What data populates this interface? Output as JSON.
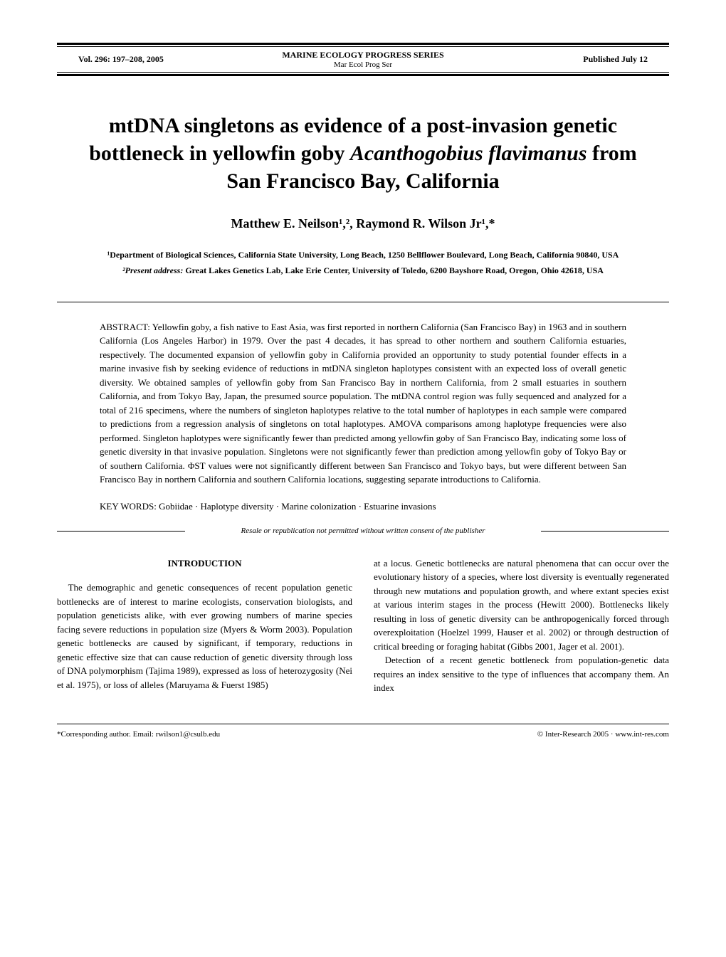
{
  "header": {
    "volume": "Vol. 296: 197–208, 2005",
    "journal_name": "MARINE ECOLOGY PROGRESS SERIES",
    "journal_abbrev": "Mar Ecol Prog Ser",
    "published": "Published July 12"
  },
  "title": {
    "line1": "mtDNA singletons as evidence of a post-invasion genetic bottleneck in yellowfin goby ",
    "italic": "Acanthogobius flavimanus",
    "line2": " from San Francisco Bay, California"
  },
  "authors": "Matthew E. Neilson¹,², Raymond R. Wilson Jr¹,*",
  "affiliations": {
    "aff1": "¹Department of Biological Sciences, California State University, Long Beach, 1250 Bellflower Boulevard, Long Beach, California 90840, USA",
    "aff2_label": "²Present address:",
    "aff2_text": " Great Lakes Genetics Lab, Lake Erie Center, University of Toledo, 6200 Bayshore Road, Oregon, Ohio 42618, USA"
  },
  "abstract": {
    "label": "ABSTRACT: ",
    "text": "Yellowfin goby, a fish native to East Asia, was first reported in northern California (San Francisco Bay) in 1963 and in southern California (Los Angeles Harbor) in 1979. Over the past 4 decades, it has spread to other northern and southern California estuaries, respectively. The documented expansion of yellowfin goby in California provided an opportunity to study potential founder effects in a marine invasive fish by seeking evidence of reductions in mtDNA singleton haplotypes consistent with an expected loss of overall genetic diversity. We obtained samples of yellowfin goby from San Francisco Bay in northern California, from 2 small estuaries in southern California, and from Tokyo Bay, Japan, the presumed source population. The mtDNA control region was fully sequenced and analyzed for a total of 216 specimens, where the numbers of singleton haplotypes relative to the total number of haplotypes in each sample were compared to predictions from a regression analysis of singletons on total haplotypes. AMOVA comparisons among haplotype frequencies were also performed. Singleton haplotypes were significantly fewer than predicted among yellowfin goby of San Francisco Bay, indicating some loss of genetic diversity in that invasive population. Singletons were not significantly fewer than prediction among yellowfin goby of Tokyo Bay or of southern California. ΦST values were not significantly different between San Francisco and Tokyo bays, but were different between San Francisco Bay in northern California and southern California locations, suggesting separate introductions to California."
  },
  "keywords": {
    "label": "KEY WORDS: ",
    "text": "Gobiidae · Haplotype diversity · Marine colonization · Estuarine invasions"
  },
  "resale_notice": "Resale or republication not permitted without written consent of the publisher",
  "body": {
    "section_heading": "INTRODUCTION",
    "left_column": {
      "p1": "The demographic and genetic consequences of recent population genetic bottlenecks are of interest to marine ecologists, conservation biologists, and population geneticists alike, with ever growing numbers of marine species facing severe reductions in population size (Myers & Worm 2003). Population genetic bottlenecks are caused by significant, if temporary, reductions in genetic effective size that can cause reduction of genetic diversity through loss of DNA polymorphism (Tajima 1989), expressed as loss of heterozygosity (Nei et al. 1975), or loss of alleles (Maruyama & Fuerst 1985)"
    },
    "right_column": {
      "p1": "at a locus. Genetic bottlenecks are natural phenomena that can occur over the evolutionary history of a species, where lost diversity is eventually regenerated through new mutations and population growth, and where extant species exist at various interim stages in the process (Hewitt 2000). Bottlenecks likely resulting in loss of genetic diversity can be anthropogenically forced through overexploitation (Hoelzel 1999, Hauser et al. 2002) or through destruction of critical breeding or foraging habitat (Gibbs 2001, Jager et al. 2001).",
      "p2": "Detection of a recent genetic bottleneck from population-genetic data requires an index sensitive to the type of influences that accompany them. An index"
    }
  },
  "footer": {
    "left": "*Corresponding author. Email: rwilson1@csulb.edu",
    "right": "© Inter-Research 2005 · www.int-res.com"
  }
}
